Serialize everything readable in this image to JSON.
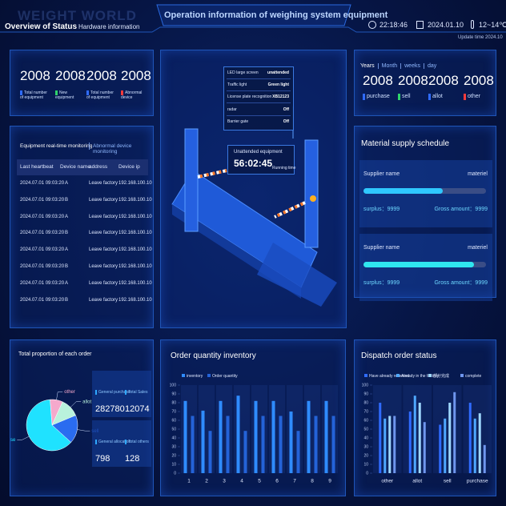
{
  "header": {
    "logo": "WEIGHT WORLD",
    "title": "Operation information of weighing system equipment",
    "time": "22:18:46",
    "date": "2024.01.10",
    "weather": "12~14℃",
    "update": "Update time 2024.10",
    "tabs": [
      "Overview of Status",
      "Hardware information"
    ]
  },
  "overview": {
    "stats": [
      {
        "value": 2008,
        "label": "Total number of equipment",
        "color": "#2f6bff"
      },
      {
        "value": 2008,
        "label": "New equipment",
        "color": "#2fd36b"
      },
      {
        "value": 2008,
        "label": "Total number of equipment",
        "color": "#2f6bff"
      },
      {
        "value": 2008,
        "label": "Abnormal device",
        "color": "#ff3b3b"
      }
    ]
  },
  "device_table": {
    "tabs": [
      "Equipment real-time monitoring",
      "Abnormal device monitoring"
    ],
    "columns": [
      "Last heartbeat",
      "Device name",
      "address",
      "Device ip"
    ],
    "rows": [
      [
        "2024.07.01 09:03:20",
        "A",
        "Leave factory",
        "192.168.100.10"
      ],
      [
        "2024.07.01 09:03:20",
        "B",
        "Leave factory",
        "192.168.100.10"
      ],
      [
        "2024.07.01 09:03:20",
        "A",
        "Leave factory",
        "192.168.100.10"
      ],
      [
        "2024.07.01 09:03:20",
        "B",
        "Leave factory",
        "192.168.100.10"
      ],
      [
        "2024.07.01 09:03:20",
        "A",
        "Leave factory",
        "192.168.100.10"
      ],
      [
        "2024.07.01 09:03:20",
        "B",
        "Leave factory",
        "192.168.100.10"
      ],
      [
        "2024.07.01 09:03:20",
        "A",
        "Leave factory",
        "192.168.100.10"
      ],
      [
        "2024.07.01 09:03:20",
        "B",
        "Leave factory",
        "192.168.100.10"
      ]
    ]
  },
  "machine": {
    "info": [
      {
        "label": "LED large screen",
        "value": "unattended"
      },
      {
        "label": "Traffic light",
        "value": "Green light"
      },
      {
        "label": "License plate recognition",
        "value": "XB12123"
      },
      {
        "label": "radar",
        "value": "Off"
      },
      {
        "label": "Barrier gate",
        "value": "Off"
      }
    ],
    "status_title": "Unattended equipment",
    "running_time": "56:02:45",
    "running_label": "Running time"
  },
  "orders": {
    "tabs": [
      "Years",
      "Month",
      "weeks",
      "day"
    ],
    "stats": [
      {
        "value": 2008,
        "label": "purchase",
        "color": "#2f6bff"
      },
      {
        "value": 2008,
        "label": "sell",
        "color": "#2fd36b"
      },
      {
        "value": 2008,
        "label": "allot",
        "color": "#2f6bff"
      },
      {
        "value": 2008,
        "label": "other",
        "color": "#ff3b3b"
      }
    ]
  },
  "materials": {
    "title": "Material supply schedule",
    "items": [
      {
        "supplier": "Supplier name",
        "material": "materiel",
        "progress": 65,
        "color": "#2fc8ff",
        "surplus_label": "surplus：",
        "surplus": 9999,
        "gross_label": "Gross amount：",
        "gross": 9999
      },
      {
        "supplier": "Supplier name",
        "material": "materiel",
        "progress": 90,
        "color": "#2fe6f0",
        "surplus_label": "surplus：",
        "surplus": 9999,
        "gross_label": "Gross amount：",
        "gross": 9999
      }
    ]
  },
  "order_totals": [
    {
      "label": "General purchase",
      "value": 282780
    },
    {
      "label": "Total Sales",
      "value": 12074
    },
    {
      "label": "General allocation",
      "value": 798
    },
    {
      "label": "Total others",
      "value": 128
    }
  ],
  "chart_data": [
    {
      "type": "pie",
      "title": "Total proportion of each order",
      "categories": [
        "other",
        "allot",
        "sell",
        "purchase"
      ],
      "values": [
        8,
        12,
        18,
        62
      ],
      "colors": [
        "#f5a9cc",
        "#b9f2dc",
        "#2a6cf0",
        "#1fe2ff"
      ]
    },
    {
      "type": "bar",
      "title": "Order quantity inventory",
      "categories": [
        "1",
        "2",
        "3",
        "4",
        "5",
        "6",
        "7",
        "8",
        "9"
      ],
      "series": [
        {
          "name": "inventory",
          "color": "#2f8cff",
          "values": [
            82,
            71,
            82,
            88,
            82,
            82,
            70,
            82,
            82
          ]
        },
        {
          "name": "Order quantity",
          "color": "#2463d8",
          "values": [
            65,
            48,
            65,
            48,
            65,
            65,
            48,
            65,
            65
          ]
        }
      ],
      "ylim": [
        0,
        100
      ],
      "yticks": [
        0,
        10,
        20,
        30,
        40,
        50,
        60,
        70,
        80,
        90,
        100
      ],
      "grid": false
    },
    {
      "type": "bar",
      "title": "Dispatch order status",
      "categories": [
        "other",
        "allot",
        "sell",
        "purchase"
      ],
      "series": [
        {
          "name": "Have already reserved",
          "color": "#2f6bff",
          "values": [
            80,
            70,
            55,
            80
          ]
        },
        {
          "name": "Already in the factory",
          "color": "#4fa8ff",
          "values": [
            62,
            88,
            62,
            62
          ]
        },
        {
          "name": "部分完成",
          "color": "#9fd8ff",
          "values": [
            65,
            80,
            80,
            68
          ]
        },
        {
          "name": "complete",
          "color": "#6f96ee",
          "values": [
            65,
            58,
            92,
            32
          ]
        }
      ],
      "ylim": [
        0,
        100
      ],
      "yticks": [
        0,
        10,
        20,
        30,
        40,
        50,
        60,
        70,
        80,
        90,
        100
      ],
      "grid": false
    }
  ]
}
